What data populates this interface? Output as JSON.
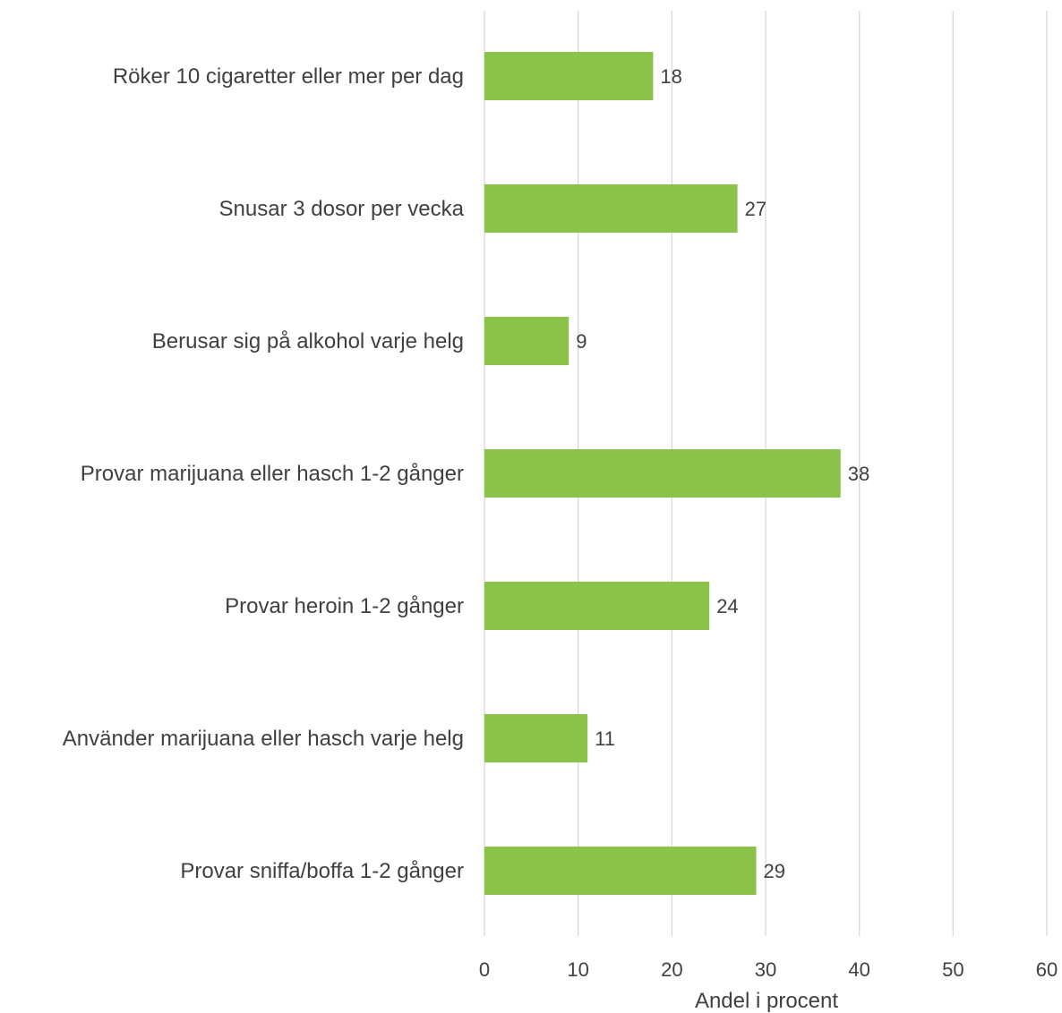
{
  "chart_data": {
    "type": "bar",
    "orientation": "horizontal",
    "categories": [
      "Röker 10 cigaretter eller mer per dag",
      "Snusar 3 dosor per vecka",
      "Berusar sig på alkohol varje helg",
      "Provar marijuana eller hasch 1-2 gånger",
      "Provar heroin 1-2 gånger",
      "Använder marijuana eller hasch varje helg",
      "Provar sniffa/boffa 1-2 gånger"
    ],
    "values": [
      18,
      27,
      9,
      38,
      24,
      11,
      29
    ],
    "data_labels": [
      "18",
      "27",
      "9",
      "38",
      "24",
      "11",
      "29"
    ],
    "xlabel": "Andel i procent",
    "xlim": [
      0,
      60
    ],
    "xticks": [
      0,
      10,
      20,
      30,
      40,
      50,
      60
    ],
    "xtick_labels": [
      "0",
      "10",
      "20",
      "30",
      "40",
      "50",
      "60"
    ],
    "grid": true,
    "legend": "none",
    "colors": {
      "bar": "#8bc34a",
      "grid": "#d9d9d9",
      "text": "#404040"
    }
  }
}
